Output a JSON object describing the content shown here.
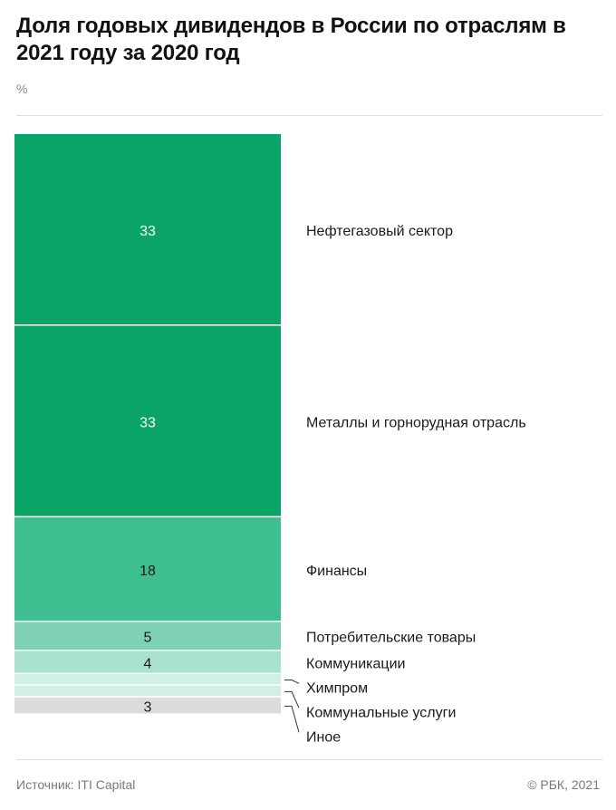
{
  "title": "Доля годовых дивидендов в России по отраслям в 2021 году за 2020 год",
  "unit": "%",
  "source": "Источник: ITI Capital",
  "copyright": "© РБК, 2021",
  "chart_data": {
    "type": "bar",
    "stacked": true,
    "categories": [
      "Нефтегазовый сектор",
      "Металлы и горнорудная отрасль",
      "Финансы",
      "Потребительские товары",
      "Коммуникации",
      "Химпром",
      "Коммунальные услуги",
      "Иное"
    ],
    "values": [
      33,
      33,
      18,
      5,
      4,
      2,
      2,
      3
    ],
    "value_labels": [
      "33",
      "33",
      "18",
      "5",
      "4",
      "",
      "",
      "3"
    ],
    "colors": [
      "#0aa566",
      "#0aa566",
      "#3fbf8f",
      "#7fd3b4",
      "#a9e3cd",
      "#d0f0e3",
      "#d0f0e3",
      "#dcdcdc"
    ],
    "ylim": [
      0,
      100
    ]
  }
}
